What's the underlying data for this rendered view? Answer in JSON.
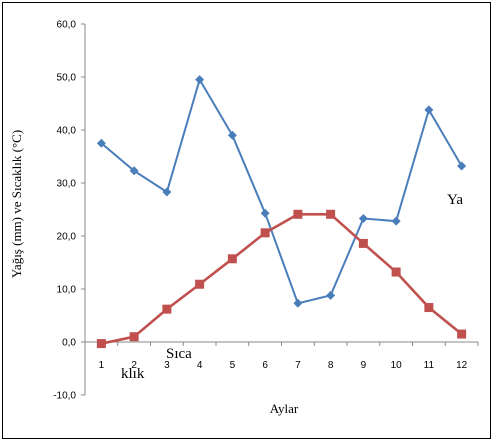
{
  "chart_data": {
    "type": "line",
    "xlabel": "Aylar",
    "ylabel": "Yağış (mm) ve Sıcaklık (°C)",
    "x": [
      "1",
      "2",
      "3",
      "4",
      "5",
      "6",
      "7",
      "8",
      "9",
      "10",
      "11",
      "12"
    ],
    "ylim": [
      -10,
      60
    ],
    "yticks": [
      "-10,0",
      "0,0",
      "10,0",
      "20,0",
      "30,0",
      "40,0",
      "50,0",
      "60,0"
    ],
    "grid": false,
    "series": [
      {
        "values": [
          37.5,
          32.3,
          28.3,
          49.5,
          39.0,
          24.3,
          7.3,
          8.8,
          23.3,
          22.8,
          43.8,
          33.2
        ],
        "color": "#4a7ebb",
        "marker": "diamond"
      },
      {
        "values": [
          -0.3,
          1.0,
          6.2,
          10.9,
          15.7,
          20.6,
          24.1,
          24.1,
          18.6,
          13.2,
          6.5,
          1.5
        ],
        "color": "#c0504d",
        "marker": "square"
      }
    ],
    "annotations": [
      "Ya",
      "Sıca",
      "klık"
    ]
  }
}
